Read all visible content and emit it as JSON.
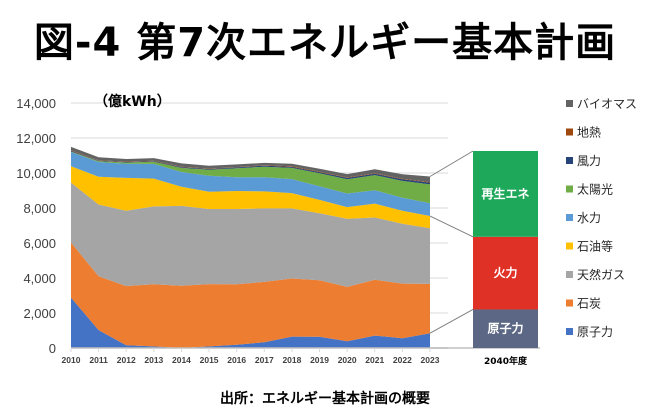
{
  "title": "図-4 第7次エネルギー基本計画",
  "source": "出所：エネルギー基本計画の概要",
  "chart_data": {
    "type": "area",
    "stacked": true,
    "title": "図-4 第7次エネルギー基本計画",
    "ylabel": "（億kWh）",
    "xlabel": "",
    "ylim": [
      0,
      14000
    ],
    "yticks": [
      0,
      2000,
      4000,
      6000,
      8000,
      10000,
      12000,
      14000
    ],
    "ytick_labels": [
      "0",
      "2,000",
      "4,000",
      "6,000",
      "8,000",
      "10,000",
      "12,000",
      "14,000"
    ],
    "grid": true,
    "legend_position": "right",
    "categories": [
      "2010",
      "2011",
      "2012",
      "2013",
      "2014",
      "2015",
      "2016",
      "2017",
      "2018",
      "2019",
      "2020",
      "2021",
      "2022",
      "2023"
    ],
    "series": [
      {
        "name": "原子力",
        "color": "#4472C4",
        "values": [
          2880,
          1020,
          160,
          93,
          0,
          94,
          181,
          329,
          649,
          638,
          388,
          708,
          561,
          848
        ]
      },
      {
        "name": "石炭",
        "color": "#ED7D31",
        "values": [
          3150,
          3080,
          3380,
          3547,
          3560,
          3556,
          3459,
          3451,
          3321,
          3232,
          3102,
          3192,
          3119,
          2812
        ]
      },
      {
        "name": "天然ガス",
        "color": "#A5A5A5",
        "values": [
          3420,
          4100,
          4300,
          4450,
          4560,
          4290,
          4300,
          4200,
          4010,
          3830,
          3900,
          3560,
          3420,
          3180
        ]
      },
      {
        "name": "石油等",
        "color": "#FFC000",
        "values": [
          930,
          1590,
          1880,
          1590,
          1090,
          990,
          1030,
          970,
          870,
          760,
          660,
          790,
          740,
          700
        ]
      },
      {
        "name": "水力",
        "color": "#5B9BD5",
        "values": [
          820,
          840,
          810,
          840,
          850,
          910,
          790,
          810,
          800,
          780,
          780,
          770,
          740,
          740
        ]
      },
      {
        "name": "太陽光",
        "color": "#70AD47",
        "values": [
          30,
          50,
          70,
          120,
          230,
          350,
          510,
          600,
          640,
          740,
          810,
          860,
          970,
          1070
        ]
      },
      {
        "name": "風力",
        "color": "#264478",
        "values": [
          40,
          30,
          30,
          40,
          50,
          40,
          50,
          60,
          60,
          70,
          80,
          80,
          90,
          100
        ]
      },
      {
        "name": "地熱",
        "color": "#9E480E",
        "values": [
          30,
          20,
          20,
          20,
          20,
          20,
          20,
          20,
          30,
          30,
          30,
          30,
          30,
          30
        ]
      },
      {
        "name": "バイオマス",
        "color": "#636363",
        "values": [
          190,
          170,
          150,
          150,
          190,
          160,
          150,
          140,
          150,
          160,
          190,
          230,
          260,
          320
        ]
      }
    ],
    "legend_order": [
      "バイオマス",
      "地熱",
      "風力",
      "太陽光",
      "水力",
      "石油等",
      "天然ガス",
      "石炭",
      "原子力"
    ],
    "target_bar": {
      "category": "2040年度",
      "segments": [
        {
          "name": "原子力",
          "color": "#5B6784",
          "value": 2200
        },
        {
          "name": "火力",
          "color": "#E03127",
          "value": 4150
        },
        {
          "name": "再生エネ",
          "color": "#1EA85A",
          "value": 4900
        }
      ]
    }
  }
}
